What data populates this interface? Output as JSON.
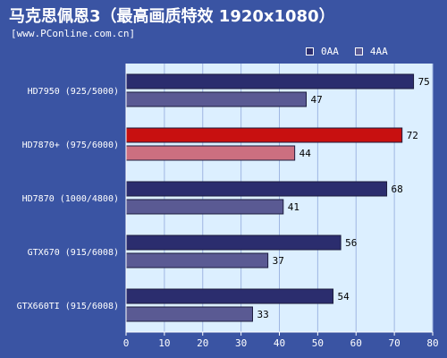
{
  "header": {
    "title": "马克思佩恩3（最高画质特效 1920x1080）",
    "subtitle": "[www.PConline.com.cn]"
  },
  "colors": {
    "background": "#3a54a3",
    "plot_bg": "#dcefff",
    "series_0AA": "#2b2d6e",
    "series_4AA": "#5a5a93",
    "highlight_0AA": "#c81010",
    "highlight_4AA": "#cc6f80"
  },
  "chart_data": {
    "type": "bar",
    "orientation": "horizontal",
    "categories": [
      "HD7950 (925/5000)",
      "HD7870+ (975/6000)",
      "HD7870 (1000/4800)",
      "GTX670 (915/6008)",
      "GTX660TI (915/6008)"
    ],
    "highlight_category": "HD7870+ (975/6000)",
    "series": [
      {
        "name": "0AA",
        "values": [
          75,
          72,
          68,
          56,
          54
        ]
      },
      {
        "name": "4AA",
        "values": [
          47,
          44,
          41,
          37,
          33
        ]
      }
    ],
    "xlim": [
      0,
      80
    ],
    "xticks": [
      0,
      10,
      20,
      30,
      40,
      50,
      60,
      70,
      80
    ],
    "grid": true,
    "legend_position": "top-right"
  }
}
